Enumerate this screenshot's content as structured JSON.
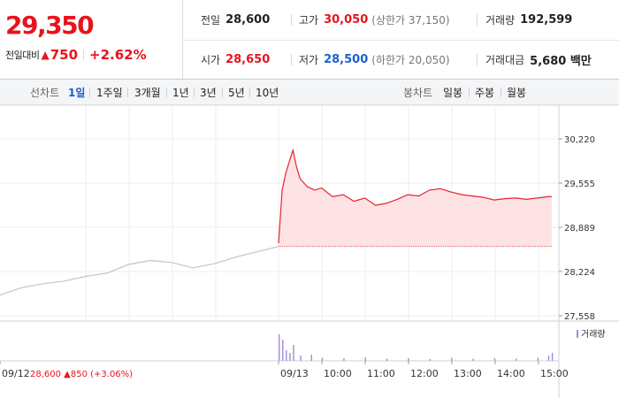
{
  "quote": {
    "price": "29,350",
    "change_label": "전일대비",
    "change_arrow": "▲",
    "change_amount": "750",
    "change_pct": "+2.62%"
  },
  "stats": {
    "prev_close": {
      "label": "전일",
      "value": "28,600"
    },
    "high": {
      "label": "고가",
      "value": "30,050",
      "sub": "(상한가 37,150)"
    },
    "volume": {
      "label": "거래량",
      "value": "192,599"
    },
    "open": {
      "label": "시가",
      "value": "28,650"
    },
    "low": {
      "label": "저가",
      "value": "28,500",
      "sub": "(하한가 20,050)"
    },
    "trade_amount": {
      "label": "거래대금",
      "value": "5,680 백만"
    }
  },
  "toolbar": {
    "line_label": "선차트",
    "periods": [
      "1일",
      "1주일",
      "3개월",
      "1년",
      "3년",
      "5년",
      "10년"
    ],
    "active_period": "1일",
    "candle_label": "봉차트",
    "candles": [
      "일봉",
      "주봉",
      "월봉"
    ]
  },
  "colors": {
    "up": "#e8131c",
    "down": "#1b61d1",
    "prev_day_line": "#c4c4c4",
    "today_line": "#e5232b",
    "today_fill": "#fde3e3",
    "volume_bar": "#a48ad6"
  },
  "chart_data": {
    "type": "line",
    "y_ticks": [
      "30,220",
      "29,555",
      "28,889",
      "28,224",
      "27,558"
    ],
    "ylim": [
      27558,
      30220
    ],
    "grid": true,
    "reference_price": 28600,
    "x_ticks": [
      "09/12",
      "09/13",
      "10:00",
      "11:00",
      "12:00",
      "13:00",
      "14:00",
      "15:00"
    ],
    "prev_day_info": {
      "date": "09/12",
      "close": "28,600",
      "arrow": "▲",
      "change": "850",
      "pct": "(+3.06%)"
    },
    "series": [
      {
        "date": "09/12",
        "x": [
          "09:00",
          "09:30",
          "10:00",
          "10:30",
          "11:00",
          "11:30",
          "12:00",
          "12:30",
          "13:00",
          "13:30",
          "14:00",
          "14:30",
          "15:00",
          "15:30"
        ],
        "values": [
          27870,
          27980,
          28040,
          28080,
          28150,
          28200,
          28330,
          28390,
          28360,
          28280,
          28340,
          28440,
          28520,
          28600
        ]
      },
      {
        "date": "09/13",
        "x": [
          "09:00",
          "09:05",
          "09:10",
          "09:15",
          "09:20",
          "09:25",
          "09:30",
          "09:40",
          "09:50",
          "10:00",
          "10:15",
          "10:30",
          "10:45",
          "11:00",
          "11:15",
          "11:30",
          "11:45",
          "12:00",
          "12:15",
          "12:30",
          "12:45",
          "13:00",
          "13:15",
          "13:30",
          "13:45",
          "14:00",
          "14:15",
          "14:30",
          "14:45",
          "15:00",
          "15:15",
          "15:20"
        ],
        "values": [
          28650,
          29450,
          29700,
          29880,
          30050,
          29800,
          29620,
          29500,
          29450,
          29480,
          29350,
          29380,
          29280,
          29330,
          29220,
          29250,
          29310,
          29380,
          29360,
          29450,
          29470,
          29420,
          29380,
          29360,
          29340,
          29300,
          29320,
          29330,
          29310,
          29330,
          29350,
          29350
        ]
      }
    ],
    "volume_label": "거래량",
    "volume": {
      "x": [
        "09:00",
        "09:05",
        "09:10",
        "09:15",
        "09:20",
        "09:30",
        "09:45",
        "10:00",
        "10:30",
        "11:00",
        "11:30",
        "12:00",
        "12:30",
        "13:00",
        "13:30",
        "14:00",
        "14:30",
        "15:00",
        "15:15",
        "15:20"
      ],
      "values": [
        3000,
        2400,
        1200,
        900,
        1800,
        600,
        700,
        350,
        300,
        400,
        250,
        300,
        200,
        350,
        250,
        300,
        250,
        350,
        600,
        900
      ]
    }
  }
}
